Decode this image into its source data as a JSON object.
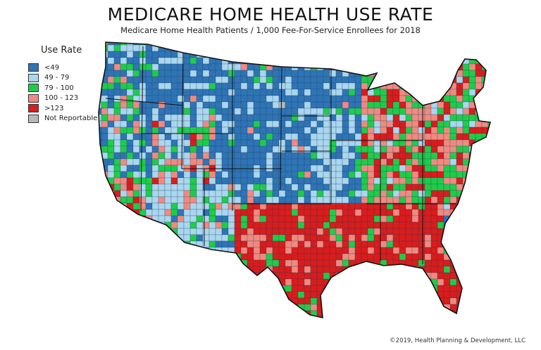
{
  "title": "MEDICARE HOME HEALTH USE RATE",
  "subtitle": "Medicare Home Health Patients / 1,000 Fee-For-Service Enrollees for 2018",
  "legend": {
    "title": "Use Rate",
    "items": [
      {
        "label": "<49",
        "color": "#2f74b5"
      },
      {
        "label": "49 - 79",
        "color": "#aad6ee"
      },
      {
        "label": "79 - 100",
        "color": "#1fcc4a"
      },
      {
        "label": "100 - 123",
        "color": "#f08a80"
      },
      {
        "label": ">123",
        "color": "#d91c1c"
      },
      {
        "label": "Not Reportable",
        "color": "#b8b8b8"
      }
    ]
  },
  "credit": "©2019, Health Planning & Development, LLC"
}
